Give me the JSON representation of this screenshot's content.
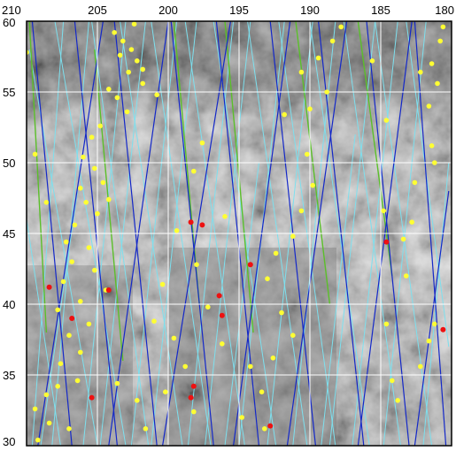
{
  "map": {
    "x_ticks": [
      {
        "value": 210,
        "label": "210"
      },
      {
        "value": 205,
        "label": "205"
      },
      {
        "value": 200,
        "label": "200"
      },
      {
        "value": 195,
        "label": "195"
      },
      {
        "value": 190,
        "label": "190"
      },
      {
        "value": 185,
        "label": "185"
      },
      {
        "value": 180,
        "label": "180"
      }
    ],
    "y_ticks": [
      {
        "value": 60,
        "label": "60"
      },
      {
        "value": 55,
        "label": "55"
      },
      {
        "value": 50,
        "label": "50"
      },
      {
        "value": 45,
        "label": "45"
      },
      {
        "value": 40,
        "label": "40"
      },
      {
        "value": 35,
        "label": "35"
      },
      {
        "value": 30,
        "label": "30"
      }
    ],
    "x_range": [
      210,
      180
    ],
    "y_range": [
      30,
      60
    ],
    "grid": true,
    "colors": {
      "grid": "#ffffff",
      "track_dark_blue": "#1428c8",
      "track_light_blue": "#7de0ee",
      "track_green": "#5bbf2a",
      "point_yellow": "#ffff33",
      "point_red": "#ee1111",
      "terrain_dark": "#3a3a3a",
      "terrain_light": "#b4b4b4"
    },
    "dark_blue_tracks": [
      [
        [
          206.8,
          30
        ],
        [
          209.6,
          60
        ]
      ],
      [
        [
          203.6,
          30
        ],
        [
          206.6,
          60
        ]
      ],
      [
        [
          200.8,
          30
        ],
        [
          203.8,
          60
        ]
      ],
      [
        [
          196.8,
          30
        ],
        [
          199.8,
          60
        ]
      ],
      [
        [
          193.6,
          30
        ],
        [
          196.6,
          60
        ]
      ],
      [
        [
          189.6,
          30
        ],
        [
          192.8,
          60
        ]
      ],
      [
        [
          186.2,
          30
        ],
        [
          189.4,
          60
        ]
      ],
      [
        [
          183,
          30
        ],
        [
          186,
          60
        ]
      ],
      [
        [
          180.4,
          30
        ],
        [
          182.6,
          60
        ]
      ],
      [
        [
          209.2,
          30
        ],
        [
          204.6,
          60
        ]
      ],
      [
        [
          204.2,
          30
        ],
        [
          200,
          60
        ]
      ],
      [
        [
          200.4,
          30
        ],
        [
          195.6,
          60
        ]
      ],
      [
        [
          195.4,
          30
        ],
        [
          191.4,
          60
        ]
      ],
      [
        [
          191.6,
          30
        ],
        [
          187.4,
          60
        ]
      ],
      [
        [
          186.6,
          30
        ],
        [
          182.8,
          60
        ]
      ],
      [
        [
          182.6,
          30
        ],
        [
          180.2,
          48
        ]
      ]
    ],
    "light_blue_tracks": [
      [
        [
          209.6,
          30
        ],
        [
          207.4,
          60
        ]
      ],
      [
        [
          208.2,
          30
        ],
        [
          205.6,
          60
        ]
      ],
      [
        [
          206.0,
          30
        ],
        [
          203.0,
          60
        ]
      ],
      [
        [
          204.8,
          30
        ],
        [
          201.6,
          60
        ]
      ],
      [
        [
          202.6,
          30
        ],
        [
          199.4,
          60
        ]
      ],
      [
        [
          201.2,
          30
        ],
        [
          198.0,
          60
        ]
      ],
      [
        [
          198.6,
          30
        ],
        [
          195.4,
          60
        ]
      ],
      [
        [
          197.4,
          30
        ],
        [
          194.2,
          60
        ]
      ],
      [
        [
          195.0,
          30
        ],
        [
          191.8,
          60
        ]
      ],
      [
        [
          193.0,
          30
        ],
        [
          189.8,
          60
        ]
      ],
      [
        [
          191.2,
          30
        ],
        [
          188.2,
          60
        ]
      ],
      [
        [
          188.6,
          30
        ],
        [
          185.4,
          60
        ]
      ],
      [
        [
          187.0,
          30
        ],
        [
          183.8,
          60
        ]
      ],
      [
        [
          184.8,
          30
        ],
        [
          181.8,
          60
        ]
      ],
      [
        [
          182.0,
          30
        ],
        [
          180.2,
          50
        ]
      ],
      [
        [
          207.6,
          30
        ],
        [
          210,
          46
        ]
      ],
      [
        [
          205.0,
          30
        ],
        [
          209.8,
          58
        ]
      ],
      [
        [
          203.0,
          30
        ],
        [
          208.0,
          60
        ]
      ],
      [
        [
          201.4,
          30
        ],
        [
          205.4,
          60
        ]
      ],
      [
        [
          199.0,
          30
        ],
        [
          203.4,
          60
        ]
      ],
      [
        [
          197.0,
          30
        ],
        [
          201.2,
          60
        ]
      ],
      [
        [
          194.6,
          30
        ],
        [
          198.8,
          60
        ]
      ],
      [
        [
          192.4,
          30
        ],
        [
          196.8,
          60
        ]
      ],
      [
        [
          190.2,
          30
        ],
        [
          194.4,
          60
        ]
      ],
      [
        [
          188.2,
          30
        ],
        [
          192.2,
          60
        ]
      ],
      [
        [
          185.8,
          30
        ],
        [
          190.0,
          60
        ]
      ],
      [
        [
          183.6,
          30
        ],
        [
          187.6,
          60
        ]
      ],
      [
        [
          181.4,
          30
        ],
        [
          185.4,
          60
        ]
      ],
      [
        [
          180.2,
          37
        ],
        [
          183.2,
          60
        ]
      ],
      [
        [
          209.0,
          30
        ],
        [
          206.4,
          48
        ]
      ],
      [
        [
          196.0,
          30
        ],
        [
          193.6,
          50
        ]
      ],
      [
        [
          189.2,
          30
        ],
        [
          186.8,
          52
        ]
      ]
    ],
    "green_tracks": [
      [
        [
          208.6,
          38
        ],
        [
          209.8,
          60
        ]
      ],
      [
        [
          203.2,
          36
        ],
        [
          205.2,
          58
        ]
      ],
      [
        [
          197.8,
          40
        ],
        [
          199.6,
          60
        ]
      ],
      [
        [
          194.0,
          38
        ],
        [
          196.0,
          60
        ]
      ],
      [
        [
          188.6,
          40
        ],
        [
          191.0,
          60
        ]
      ],
      [
        [
          184.2,
          42
        ],
        [
          186.6,
          60
        ]
      ]
    ],
    "yellow_points": [
      [
        203.8,
        59.2
      ],
      [
        203.2,
        58.6
      ],
      [
        202.6,
        58.0
      ],
      [
        202.2,
        57.2
      ],
      [
        201.8,
        56.6
      ],
      [
        203.4,
        57.6
      ],
      [
        202.8,
        56.4
      ],
      [
        204.2,
        55.2
      ],
      [
        203.6,
        54.6
      ],
      [
        202.9,
        53.6
      ],
      [
        204.8,
        52.6
      ],
      [
        205.4,
        51.8
      ],
      [
        206.0,
        50.4
      ],
      [
        205.2,
        49.6
      ],
      [
        204.6,
        48.6
      ],
      [
        206.2,
        48.2
      ],
      [
        205.8,
        47.2
      ],
      [
        204.2,
        47.4
      ],
      [
        205.0,
        46.4
      ],
      [
        206.6,
        45.6
      ],
      [
        207.2,
        44.4
      ],
      [
        205.6,
        44.0
      ],
      [
        206.8,
        43.0
      ],
      [
        205.2,
        42.4
      ],
      [
        207.4,
        41.6
      ],
      [
        204.4,
        41.0
      ],
      [
        206.2,
        40.2
      ],
      [
        207.8,
        39.6
      ],
      [
        205.6,
        38.6
      ],
      [
        207.0,
        37.8
      ],
      [
        206.2,
        36.6
      ],
      [
        207.6,
        35.8
      ],
      [
        206.4,
        34.6
      ],
      [
        207.8,
        34.2
      ],
      [
        208.6,
        33.6
      ],
      [
        209.4,
        32.6
      ],
      [
        208.4,
        31.6
      ],
      [
        209.2,
        30.4
      ],
      [
        207.0,
        31.2
      ],
      [
        203.6,
        34.4
      ],
      [
        202.2,
        33.2
      ],
      [
        201.6,
        31.2
      ],
      [
        200.2,
        33.8
      ],
      [
        198.8,
        35.6
      ],
      [
        198.2,
        32.4
      ],
      [
        199.6,
        37.6
      ],
      [
        201.0,
        38.8
      ],
      [
        200.4,
        41.4
      ],
      [
        198.0,
        42.8
      ],
      [
        197.2,
        39.8
      ],
      [
        196.2,
        37.2
      ],
      [
        194.2,
        35.6
      ],
      [
        193.4,
        33.8
      ],
      [
        194.8,
        32.0
      ],
      [
        193.2,
        31.2
      ],
      [
        192.6,
        36.2
      ],
      [
        191.2,
        37.8
      ],
      [
        192.0,
        39.4
      ],
      [
        193.0,
        41.8
      ],
      [
        192.4,
        43.6
      ],
      [
        191.2,
        44.8
      ],
      [
        190.6,
        46.6
      ],
      [
        189.8,
        48.4
      ],
      [
        190.2,
        50.6
      ],
      [
        191.8,
        53.4
      ],
      [
        190.0,
        53.8
      ],
      [
        188.8,
        55.0
      ],
      [
        190.6,
        56.4
      ],
      [
        189.4,
        57.4
      ],
      [
        188.4,
        58.6
      ],
      [
        187.8,
        59.6
      ],
      [
        185.6,
        57.2
      ],
      [
        184.6,
        53.0
      ],
      [
        184.8,
        46.6
      ],
      [
        183.4,
        44.6
      ],
      [
        182.8,
        45.8
      ],
      [
        183.2,
        42.0
      ],
      [
        184.6,
        38.6
      ],
      [
        184.2,
        34.6
      ],
      [
        183.8,
        33.2
      ],
      [
        182.2,
        35.6
      ],
      [
        181.6,
        37.4
      ],
      [
        181.2,
        38.6
      ],
      [
        182.6,
        48.6
      ],
      [
        181.4,
        51.2
      ],
      [
        181.6,
        54.0
      ],
      [
        181.0,
        55.6
      ],
      [
        180.8,
        58.6
      ],
      [
        181.4,
        57.0
      ],
      [
        180.6,
        59.6
      ],
      [
        182.2,
        56.4
      ],
      [
        181.2,
        50.0
      ],
      [
        197.6,
        51.4
      ],
      [
        196.0,
        46.2
      ],
      [
        199.4,
        45.2
      ],
      [
        198.2,
        49.4
      ],
      [
        201.8,
        55.6
      ],
      [
        202.4,
        59.8
      ],
      [
        200.8,
        54.8
      ],
      [
        210,
        57.8
      ],
      [
        209.4,
        50.6
      ],
      [
        208.6,
        47.2
      ]
    ],
    "red_points": [
      [
        208.4,
        41.2
      ],
      [
        206.8,
        39.0
      ],
      [
        204.2,
        41.0
      ],
      [
        198.4,
        45.8
      ],
      [
        197.6,
        45.6
      ],
      [
        196.4,
        40.6
      ],
      [
        196.2,
        39.2
      ],
      [
        194.2,
        42.8
      ],
      [
        198.2,
        34.2
      ],
      [
        198.4,
        33.4
      ],
      [
        205.4,
        33.4
      ],
      [
        192.8,
        31.4
      ],
      [
        184.6,
        44.4
      ],
      [
        180.6,
        38.2
      ]
    ]
  }
}
